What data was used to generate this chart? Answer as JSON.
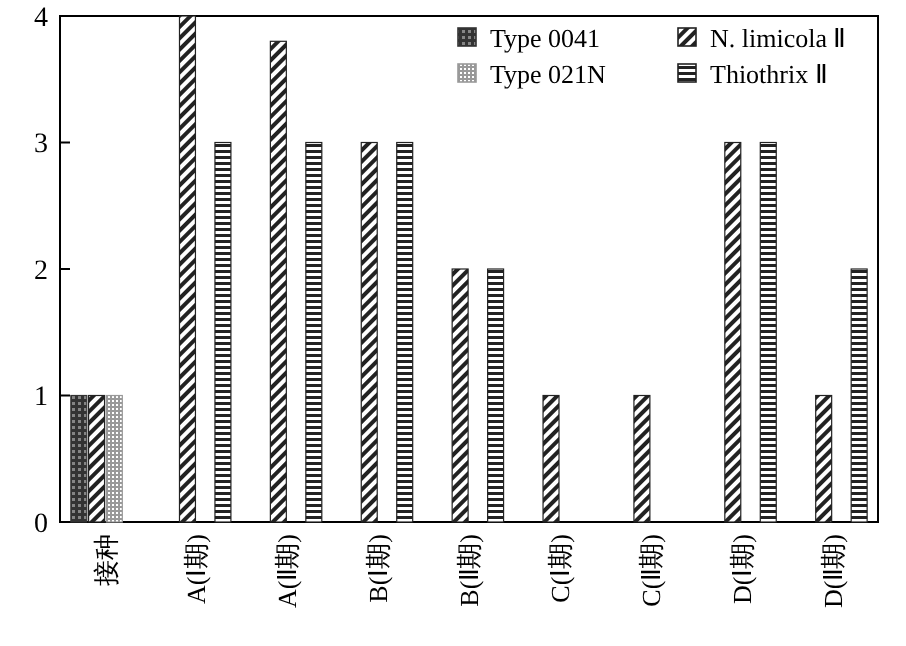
{
  "chart_data": {
    "type": "bar",
    "categories": [
      "接种",
      "A(Ⅰ期)",
      "A(Ⅱ期)",
      "B(Ⅰ期)",
      "B(Ⅱ期)",
      "C(Ⅰ期)",
      "C(Ⅱ期)",
      "D(Ⅰ期)",
      "D(Ⅱ期)"
    ],
    "series": [
      {
        "name": "Type 0041",
        "color": "#333333",
        "values": [
          1,
          0,
          0,
          0,
          0,
          0,
          0,
          0,
          0
        ]
      },
      {
        "name": "N. limicola Ⅱ",
        "color": "#222222",
        "values": [
          1,
          4,
          3.8,
          3,
          2,
          1,
          1,
          3,
          1
        ]
      },
      {
        "name": "Type 021N",
        "color": "#999999",
        "values": [
          1,
          0,
          0,
          0,
          0,
          0,
          0,
          0,
          0
        ]
      },
      {
        "name": "Thiothrix Ⅱ",
        "color": "#222222",
        "values": [
          0,
          3,
          3,
          3,
          2,
          0,
          0,
          3,
          2
        ]
      }
    ],
    "ylim": [
      0,
      4
    ],
    "yticks": [
      0,
      1,
      2,
      3,
      4
    ],
    "grid": false,
    "legend": "top right"
  }
}
